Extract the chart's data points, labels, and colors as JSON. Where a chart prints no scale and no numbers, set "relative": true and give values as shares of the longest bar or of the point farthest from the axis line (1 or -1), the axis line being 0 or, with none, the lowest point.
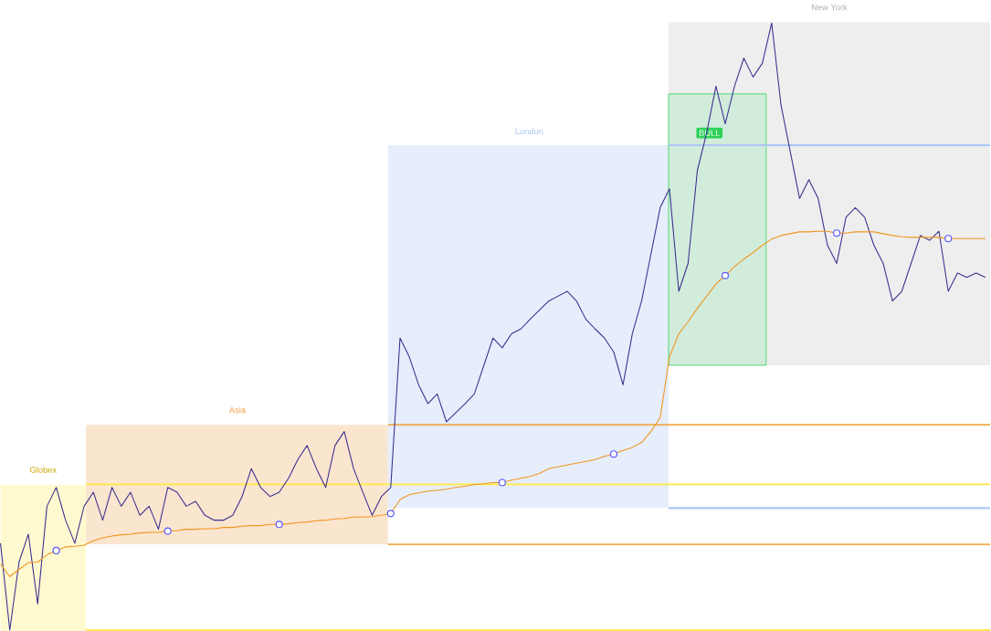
{
  "chart_data": {
    "type": "line",
    "relative": true,
    "marker": "none",
    "annotations": [
      "Globex",
      "Asia",
      "London",
      "New York",
      "BULL"
    ],
    "categories": [
      null,
      null,
      null,
      null,
      null,
      null,
      null,
      null,
      null,
      null,
      null,
      null,
      null,
      null,
      null,
      null,
      null,
      null,
      null,
      null,
      null,
      null,
      null,
      null,
      null,
      null,
      null,
      null,
      null,
      null,
      null,
      null,
      null,
      null,
      null,
      null,
      null,
      null,
      null,
      null,
      null,
      null,
      null,
      null,
      null,
      null,
      null,
      null,
      null,
      null,
      null,
      null,
      null,
      null,
      null,
      null,
      null,
      null,
      null,
      null,
      null,
      null,
      null,
      null,
      null,
      null,
      null,
      null,
      null,
      null,
      null,
      null,
      null,
      null,
      null,
      null,
      null,
      null,
      null,
      null,
      null,
      null,
      null,
      null,
      null,
      null,
      null,
      null,
      null,
      null,
      null,
      null,
      null,
      null,
      null,
      null,
      null,
      null,
      null,
      null,
      null,
      null,
      null,
      null,
      null,
      null,
      null
    ],
    "series": [
      {
        "color": "#3b2f8f",
        "values": [
          0.143,
          0,
          0.112,
          0.158,
          0.043,
          0.204,
          0.235,
          0.181,
          0.143,
          0.204,
          0.227,
          0.181,
          0.235,
          0.204,
          0.227,
          0.189,
          0.204,
          0.166,
          0.235,
          0.227,
          0.204,
          0.212,
          0.189,
          0.181,
          0.181,
          0.189,
          0.22,
          0.266,
          0.235,
          0.22,
          0.227,
          0.25,
          0.281,
          0.304,
          0.266,
          0.235,
          0.304,
          0.327,
          0.266,
          0.227,
          0.189,
          0.22,
          0.235,
          0.481,
          0.45,
          0.404,
          0.373,
          0.389,
          0.343,
          0.358,
          0.373,
          0.389,
          0.435,
          0.481,
          0.465,
          0.488,
          0.496,
          0.512,
          0.527,
          0.542,
          0.55,
          0.558,
          0.542,
          0.512,
          0.496,
          0.481,
          0.458,
          0.404,
          0.488,
          0.542,
          0.619,
          0.696,
          0.727,
          0.558,
          0.604,
          0.757,
          0.819,
          0.896,
          0.834,
          0.896,
          0.942,
          0.911,
          0.934,
          1,
          0.865,
          0.788,
          0.711,
          0.742,
          0.711,
          0.634,
          0.604,
          0.68,
          0.696,
          0.68,
          0.634,
          0.604,
          0.542,
          0.558,
          0.604,
          0.65,
          0.642,
          0.657,
          0.558,
          0.588,
          0.581,
          0.588,
          0.581
        ]
      },
      {
        "color": "#f0951e",
        "values": [
          0.109,
          0.088,
          0.1,
          0.111,
          0.112,
          0.124,
          0.131,
          0.137,
          0.138,
          0.14,
          0.147,
          0.152,
          0.155,
          0.157,
          0.158,
          0.16,
          0.161,
          0.161,
          0.163,
          0.164,
          0.166,
          0.166,
          0.167,
          0.167,
          0.169,
          0.169,
          0.171,
          0.172,
          0.172,
          0.174,
          0.174,
          0.175,
          0.177,
          0.178,
          0.18,
          0.181,
          0.183,
          0.184,
          0.186,
          0.186,
          0.187,
          0.189,
          0.192,
          0.215,
          0.223,
          0.226,
          0.229,
          0.23,
          0.232,
          0.235,
          0.237,
          0.24,
          0.241,
          0.243,
          0.243,
          0.247,
          0.25,
          0.253,
          0.258,
          0.266,
          0.269,
          0.272,
          0.275,
          0.278,
          0.281,
          0.286,
          0.29,
          0.296,
          0.301,
          0.309,
          0.327,
          0.35,
          0.45,
          0.488,
          0.508,
          0.53,
          0.55,
          0.57,
          0.584,
          0.599,
          0.611,
          0.622,
          0.634,
          0.644,
          0.65,
          0.653,
          0.656,
          0.656,
          0.657,
          0.657,
          0.654,
          0.654,
          0.656,
          0.656,
          0.656,
          0.653,
          0.65,
          0.648,
          0.647,
          0.647,
          0.647,
          0.647,
          0.645,
          0.645,
          0.645,
          0.645,
          0.645
        ]
      }
    ],
    "ref_lines": [
      {
        "axis": "y",
        "value": 0.24,
        "color": "#ffe94d"
      },
      {
        "axis": "y",
        "value": 0,
        "color": "#ffe94d"
      },
      {
        "axis": "y",
        "value": 0.338,
        "color": "#f0ad4e"
      },
      {
        "axis": "y",
        "value": 0.141,
        "color": "#f0ad4e"
      },
      {
        "axis": "y",
        "value": 0.799,
        "color": "#aec6f5"
      },
      {
        "axis": "y",
        "value": 0.201,
        "color": "#aec6f5"
      }
    ]
  }
}
